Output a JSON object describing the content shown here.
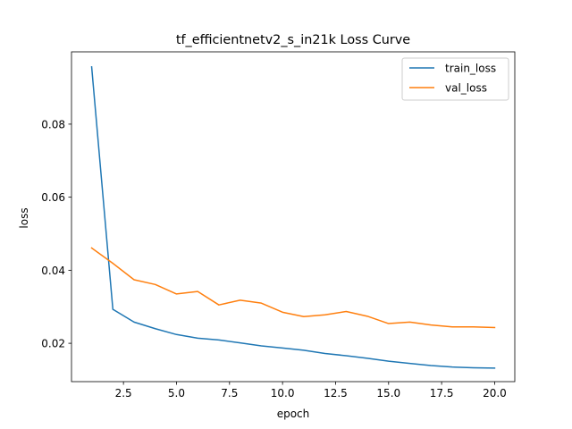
{
  "chart_data": {
    "type": "line",
    "title": "tf_efficientnetv2_s_in21k Loss Curve",
    "xlabel": "epoch",
    "ylabel": "loss",
    "xlim": [
      0.05,
      20.95
    ],
    "ylim": [
      0.0095,
      0.0998
    ],
    "xticks": [
      2.5,
      5.0,
      7.5,
      10.0,
      12.5,
      15.0,
      17.5,
      20.0
    ],
    "xtick_labels": [
      "2.5",
      "5.0",
      "7.5",
      "10.0",
      "12.5",
      "15.0",
      "17.5",
      "20.0"
    ],
    "yticks": [
      0.02,
      0.04,
      0.06,
      0.08
    ],
    "ytick_labels": [
      "0.02",
      "0.04",
      "0.06",
      "0.08"
    ],
    "grid": false,
    "legend_position": "top-right",
    "x": [
      1,
      2,
      3,
      4,
      5,
      6,
      7,
      8,
      9,
      10,
      11,
      12,
      13,
      14,
      15,
      16,
      17,
      18,
      19,
      20
    ],
    "series": [
      {
        "name": "train_loss",
        "color": "#1f77b4",
        "values": [
          0.0957,
          0.0293,
          0.0258,
          0.024,
          0.0224,
          0.0214,
          0.0209,
          0.0201,
          0.0193,
          0.0187,
          0.0181,
          0.0172,
          0.0166,
          0.0159,
          0.0151,
          0.0145,
          0.0139,
          0.0135,
          0.0133,
          0.0132
        ]
      },
      {
        "name": "val_loss",
        "color": "#ff7f0e",
        "values": [
          0.0461,
          0.0419,
          0.0374,
          0.0361,
          0.0335,
          0.0342,
          0.0305,
          0.0318,
          0.031,
          0.0285,
          0.0273,
          0.0278,
          0.0287,
          0.0274,
          0.0254,
          0.0258,
          0.025,
          0.0245,
          0.0245,
          0.0243
        ]
      }
    ]
  }
}
